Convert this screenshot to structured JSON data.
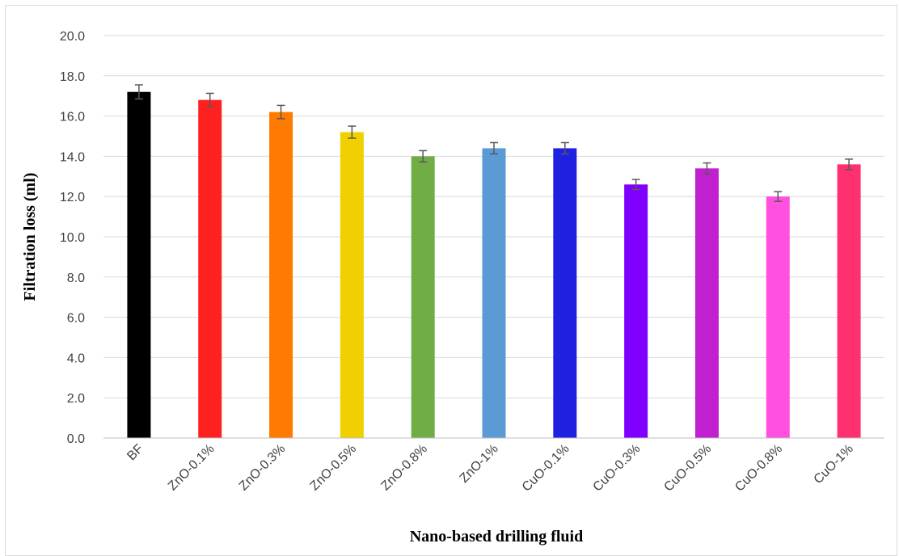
{
  "chart_data": {
    "type": "bar",
    "title": "",
    "xlabel": "Nano-based drilling fluid",
    "ylabel": "Filtration loss (ml)",
    "ylim": [
      0,
      20
    ],
    "ytick_step": 2,
    "ytick_labels": [
      "0.0",
      "2.0",
      "4.0",
      "6.0",
      "8.0",
      "10.0",
      "12.0",
      "14.0",
      "16.0",
      "18.0",
      "20.0"
    ],
    "grid": true,
    "legend": "none",
    "error_bars": true,
    "categories": [
      "BF",
      "ZnO-0.1%",
      "ZnO-0.3%",
      "ZnO-0.5%",
      "ZnO-0.8%",
      "ZnO-1%",
      "CuO-0.1%",
      "CuO-0.3%",
      "CuO-0.5%",
      "CuO-0.8%",
      "CuO-1%"
    ],
    "values": [
      17.2,
      16.8,
      16.2,
      15.2,
      14.0,
      14.4,
      14.4,
      12.6,
      13.4,
      12.0,
      13.6
    ],
    "errors": [
      0.35,
      0.33,
      0.33,
      0.3,
      0.28,
      0.28,
      0.28,
      0.25,
      0.27,
      0.24,
      0.26
    ],
    "colors": [
      "#000000",
      "#ff2020",
      "#ff7a00",
      "#f0d000",
      "#70ad47",
      "#5b9bd5",
      "#2020e0",
      "#8000ff",
      "#c020d0",
      "#ff50e0",
      "#ff3070"
    ]
  }
}
